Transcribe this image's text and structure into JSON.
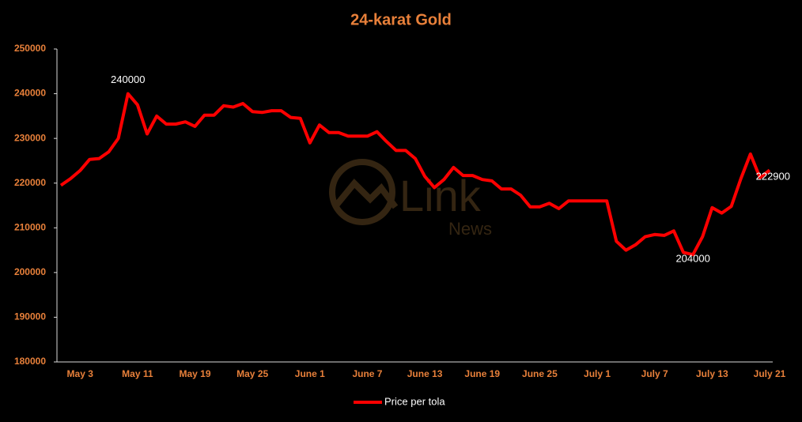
{
  "chart_data": {
    "type": "line",
    "title": "24-karat Gold",
    "watermark": {
      "brand": "Link",
      "sub": "News"
    },
    "categories": [
      null,
      null,
      "May 3",
      null,
      null,
      null,
      null,
      null,
      "May 11",
      null,
      null,
      null,
      null,
      null,
      "May 19",
      null,
      null,
      null,
      null,
      null,
      "May 25",
      null,
      null,
      null,
      null,
      null,
      "June 1",
      null,
      null,
      null,
      null,
      null,
      "June 7",
      null,
      null,
      null,
      null,
      null,
      "June 13",
      null,
      null,
      null,
      null,
      null,
      "June 19",
      null,
      null,
      null,
      null,
      null,
      "June 25",
      null,
      null,
      null,
      null,
      null,
      "July 1",
      null,
      null,
      null,
      null,
      null,
      "July 7",
      null,
      null,
      null,
      null,
      null,
      "July 13",
      null,
      null,
      null,
      null,
      null,
      "July 21"
    ],
    "series": [
      {
        "name": "Price per tola",
        "color": "#ff0000",
        "values": [
          219500,
          221000,
          222800,
          225300,
          225500,
          227000,
          230000,
          240000,
          237500,
          231000,
          235000,
          233200,
          233200,
          233700,
          232700,
          235200,
          235200,
          237300,
          237000,
          237800,
          236000,
          235800,
          236200,
          236200,
          234700,
          234500,
          229000,
          233000,
          231300,
          231300,
          230500,
          230500,
          230500,
          231500,
          229300,
          227300,
          227300,
          225500,
          221500,
          219000,
          220800,
          223500,
          221700,
          221700,
          220800,
          220500,
          218700,
          218700,
          217300,
          214700,
          214700,
          215500,
          214300,
          216000,
          216000,
          216000,
          216000,
          216000,
          207000,
          205000,
          206200,
          208000,
          208500,
          208300,
          209300,
          204500,
          204000,
          208000,
          214500,
          213300,
          214800,
          221000,
          226500,
          221200,
          222900
        ],
        "value_labels": [
          null,
          null,
          null,
          null,
          null,
          null,
          null,
          "240000",
          null,
          null,
          null,
          null,
          null,
          null,
          null,
          null,
          null,
          null,
          null,
          null,
          null,
          null,
          null,
          null,
          null,
          null,
          null,
          null,
          null,
          null,
          null,
          null,
          null,
          null,
          null,
          null,
          null,
          null,
          null,
          null,
          null,
          null,
          null,
          null,
          null,
          null,
          null,
          null,
          null,
          null,
          null,
          null,
          null,
          null,
          null,
          null,
          null,
          null,
          null,
          null,
          null,
          null,
          null,
          null,
          null,
          null,
          "204000",
          null,
          null,
          null,
          null,
          null,
          null,
          null,
          "222900"
        ]
      }
    ],
    "ylim": [
      180000,
      250000
    ],
    "yticks": [
      180000,
      190000,
      200000,
      210000,
      220000,
      230000,
      240000,
      250000
    ],
    "grid": false,
    "legend": "bottom"
  }
}
